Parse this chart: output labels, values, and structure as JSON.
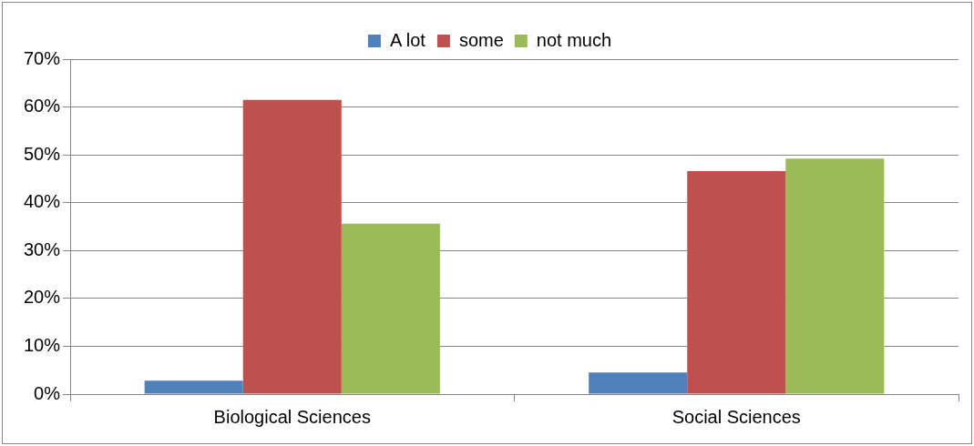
{
  "chart_data": {
    "type": "bar",
    "categories": [
      "Biological Sciences",
      "Social Sciences"
    ],
    "series": [
      {
        "name": "A lot",
        "color": "#4f81bd",
        "values": [
          2.8,
          4.5
        ]
      },
      {
        "name": "some",
        "color": "#c0504d",
        "values": [
          61.5,
          46.6
        ]
      },
      {
        "name": "not much",
        "color": "#9bbb59",
        "values": [
          35.6,
          49.2
        ]
      }
    ],
    "ylim": [
      0,
      70
    ],
    "yticks": [
      {
        "value": 0,
        "label": "0%"
      },
      {
        "value": 10,
        "label": "10%"
      },
      {
        "value": 20,
        "label": "20%"
      },
      {
        "value": 30,
        "label": "30%"
      },
      {
        "value": 40,
        "label": "40%"
      },
      {
        "value": 50,
        "label": "50%"
      },
      {
        "value": 60,
        "label": "60%"
      },
      {
        "value": 70,
        "label": "70%"
      }
    ],
    "grid": "y",
    "legend": "top"
  }
}
